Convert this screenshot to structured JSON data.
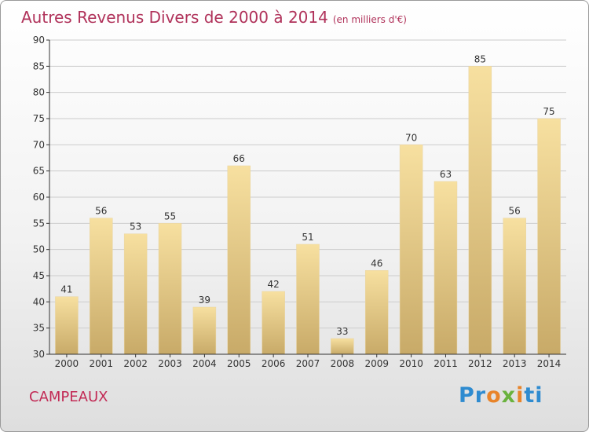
{
  "title": "Autres Revenus Divers de 2000 à 2014",
  "subtitle": "(en milliers d'€)",
  "commune": "CAMPEAUX",
  "logo": "Proxiti",
  "colors": {
    "title": "#b0325a",
    "bar_top": "#f7e0a0",
    "bar_bottom": "#c8aa68",
    "axis": "#333333",
    "grid": "#cccccc"
  },
  "chart_data": {
    "type": "bar",
    "categories": [
      "2000",
      "2001",
      "2002",
      "2003",
      "2004",
      "2005",
      "2006",
      "2007",
      "2008",
      "2009",
      "2010",
      "2011",
      "2012",
      "2013",
      "2014"
    ],
    "values": [
      41,
      56,
      53,
      55,
      39,
      66,
      42,
      51,
      33,
      46,
      70,
      63,
      85,
      56,
      75
    ],
    "ylim": [
      30,
      90
    ],
    "yticks": [
      30,
      35,
      40,
      45,
      50,
      55,
      60,
      65,
      70,
      75,
      80,
      85,
      90
    ],
    "grid": "horizontal",
    "legend": "none"
  }
}
